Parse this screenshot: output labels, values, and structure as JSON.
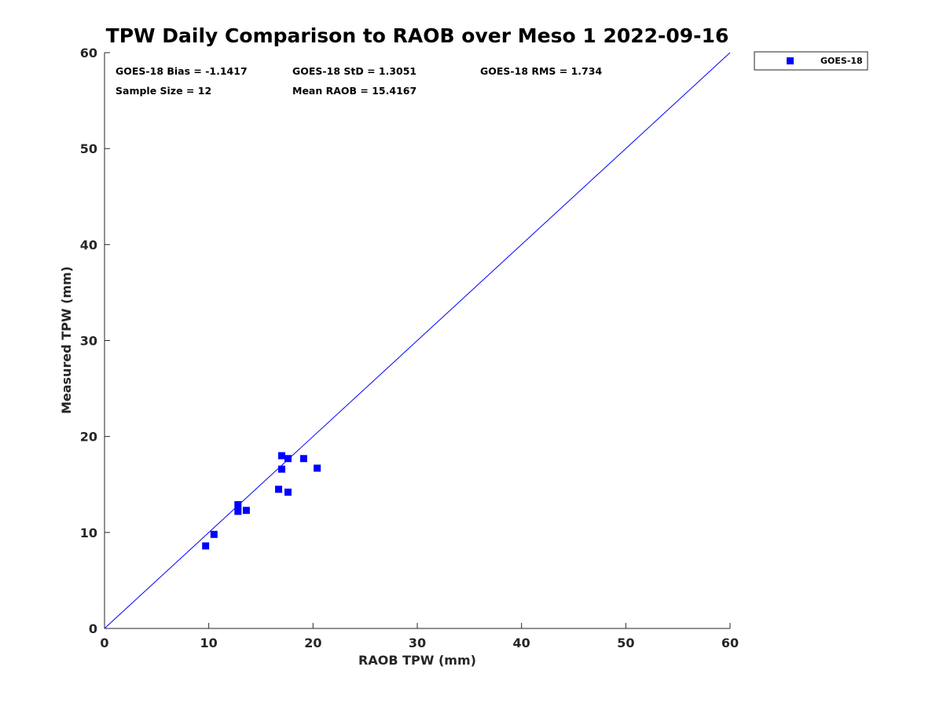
{
  "chart_data": {
    "type": "scatter",
    "title": "TPW Daily Comparison to RAOB over Meso 1 2022-09-16",
    "xlabel": "RAOB TPW (mm)",
    "ylabel": "Measured TPW (mm)",
    "xlim": [
      0,
      60
    ],
    "ylim": [
      0,
      60
    ],
    "xticks": [
      "0",
      "10",
      "20",
      "30",
      "40",
      "50",
      "60"
    ],
    "yticks": [
      "0",
      "10",
      "20",
      "30",
      "40",
      "50",
      "60"
    ],
    "grid": false,
    "legend_position": "outside top-right",
    "reference_line": {
      "type": "1:1",
      "x": [
        0,
        60
      ],
      "y": [
        0,
        60
      ],
      "color": "#0000ff"
    },
    "series": [
      {
        "name": "GOES-18",
        "marker": "square",
        "color": "#0000ff",
        "points": [
          {
            "x": 9.7,
            "y": 8.6
          },
          {
            "x": 10.5,
            "y": 9.8
          },
          {
            "x": 12.8,
            "y": 12.9
          },
          {
            "x": 12.8,
            "y": 12.2
          },
          {
            "x": 13.6,
            "y": 12.3
          },
          {
            "x": 16.7,
            "y": 14.5
          },
          {
            "x": 17.0,
            "y": 18.0
          },
          {
            "x": 17.0,
            "y": 16.6
          },
          {
            "x": 17.6,
            "y": 17.7
          },
          {
            "x": 17.6,
            "y": 14.2
          },
          {
            "x": 19.1,
            "y": 17.7
          },
          {
            "x": 20.4,
            "y": 16.7
          }
        ]
      }
    ],
    "annotations": [
      {
        "id": "bias",
        "text": "GOES-18 Bias = -1.1417"
      },
      {
        "id": "std",
        "text": "GOES-18 StD = 1.3051"
      },
      {
        "id": "rms",
        "text": "GOES-18 RMS = 1.734"
      },
      {
        "id": "sample",
        "text": "Sample Size = 12"
      },
      {
        "id": "mean",
        "text": "Mean RAOB = 15.4167"
      }
    ]
  }
}
